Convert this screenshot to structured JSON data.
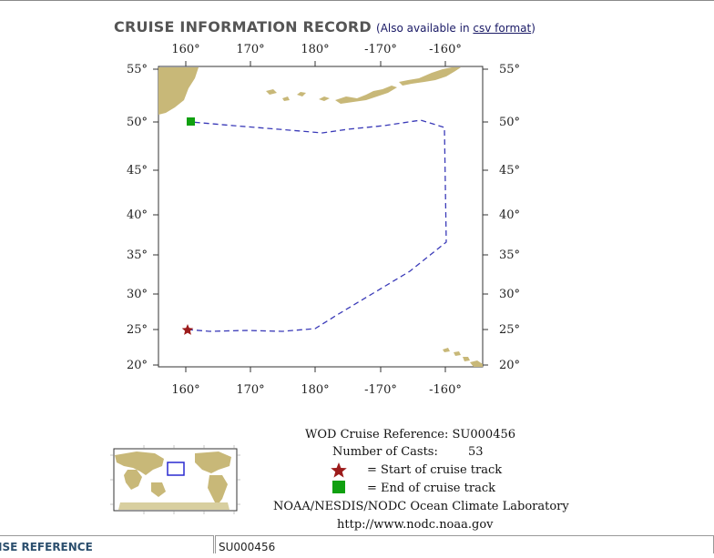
{
  "header": {
    "title": "CRUISE INFORMATION RECORD",
    "aside_prefix": "(Also available in ",
    "aside_link": "csv format",
    "aside_suffix": ")"
  },
  "map": {
    "top_ticks": [
      "160°",
      "170°",
      "180°",
      "-170°",
      "-160°"
    ],
    "bottom_ticks": [
      "160°",
      "170°",
      "180°",
      "-170°",
      "-160°"
    ],
    "left_ticks": [
      "55°",
      "50°",
      "45°",
      "40°",
      "35°",
      "30°",
      "25°",
      "20°"
    ],
    "right_ticks": [
      "55°",
      "50°",
      "45°",
      "40°",
      "35°",
      "30°",
      "25°",
      "20°"
    ],
    "colors": {
      "track": "#3a3ab8",
      "land": "#c8b878",
      "start": "#9c1b1b",
      "end": "#10a010"
    }
  },
  "legend": {
    "reference": "WOD Cruise Reference: SU000456",
    "casts_label": "Number of Casts:",
    "casts_value": "53",
    "start_label": "= Start of cruise track",
    "end_label": "= End of cruise track",
    "lab": "NOAA/NESDIS/NODC Ocean Climate Laboratory",
    "url": "http://www.nodc.noaa.gov"
  },
  "table": {
    "label": "ISE REFERENCE",
    "value": "SU000456"
  }
}
